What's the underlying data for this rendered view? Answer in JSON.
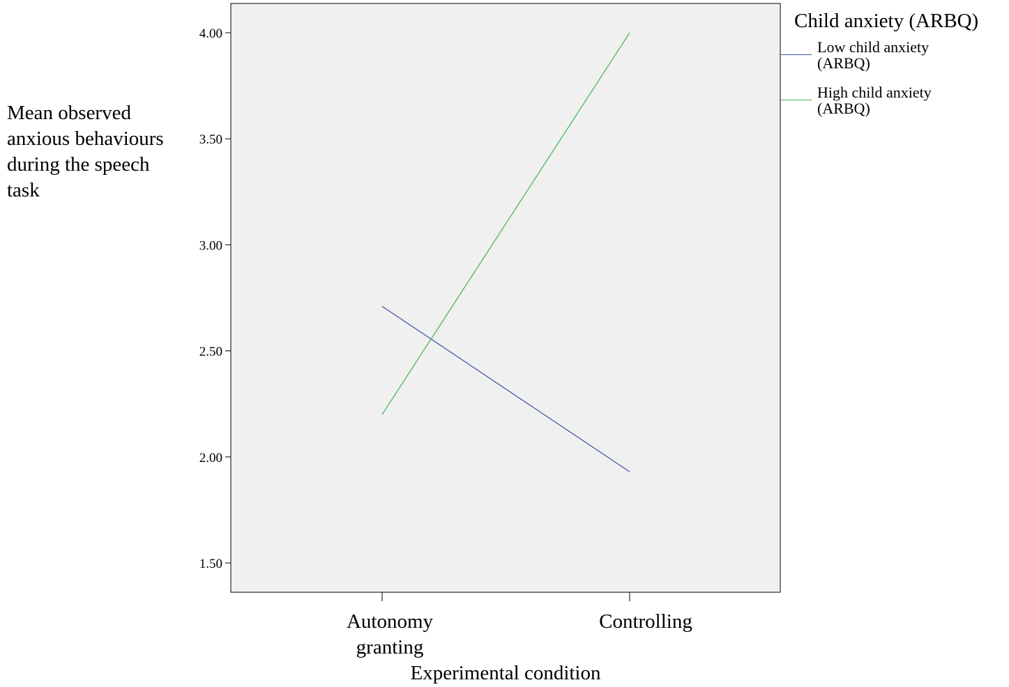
{
  "chart_data": {
    "type": "line",
    "title": "",
    "xlabel": "Experimental condition",
    "ylabel_lines": [
      "Mean observed",
      "anxious behaviours",
      "during the speech",
      "task"
    ],
    "categories": [
      {
        "lines": [
          "Autonomy",
          "granting"
        ]
      },
      {
        "lines": [
          "Controlling"
        ]
      }
    ],
    "y_ticks": [
      "1.50",
      "2.00",
      "2.50",
      "3.00",
      "3.50",
      "4.00"
    ],
    "ylim": [
      1.36,
      4.14
    ],
    "legend": {
      "title": "Child anxiety (ARBQ)",
      "placement": "right"
    },
    "series": [
      {
        "name_lines": [
          "Low child anxiety",
          "(ARBQ)"
        ],
        "color": "#3a4fa8",
        "values": [
          2.71,
          1.93
        ]
      },
      {
        "name_lines": [
          "High child anxiety",
          "(ARBQ)"
        ],
        "color": "#3cb44b",
        "values": [
          2.2,
          4.0
        ]
      }
    ],
    "background": "#f0f0f0",
    "grid": false
  }
}
